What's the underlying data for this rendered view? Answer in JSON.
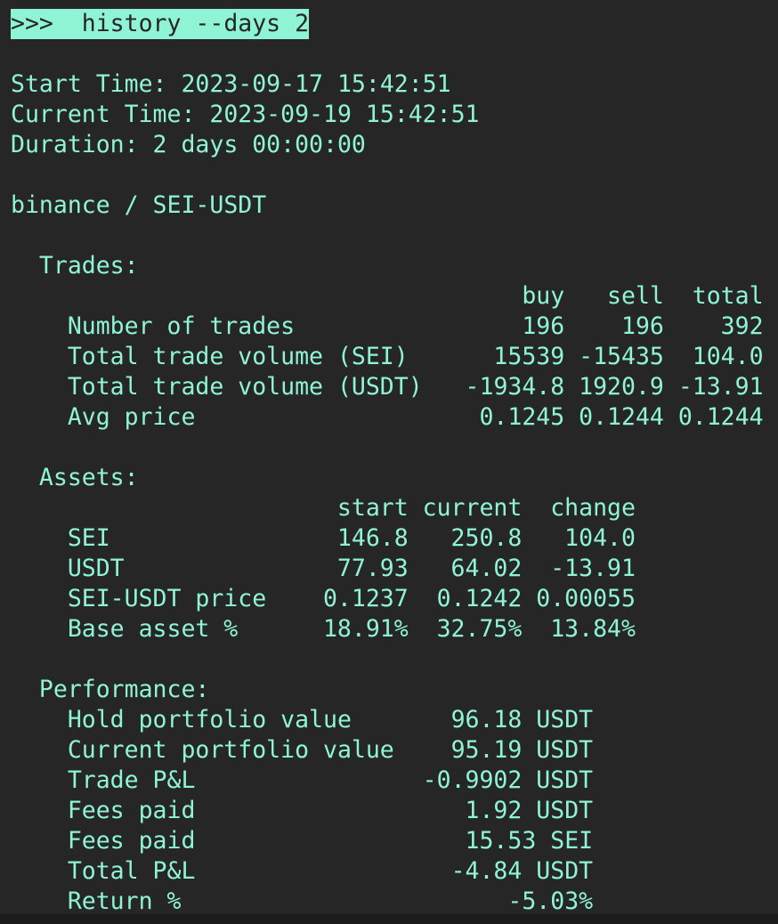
{
  "command": ">>>  history --days 2",
  "start_time": "Start Time: 2023-09-17 15:42:51",
  "current_time": "Current Time: 2023-09-19 15:42:51",
  "duration": "Duration: 2 days 00:00:00",
  "market": "binance / SEI-USDT",
  "trades": {
    "heading": "Trades:",
    "headers": [
      "buy",
      "sell",
      "total"
    ],
    "rows": [
      {
        "label": "Number of trades",
        "buy": "196",
        "sell": "196",
        "total": "392"
      },
      {
        "label": "Total trade volume (SEI)",
        "buy": "15539",
        "sell": "-15435",
        "total": "104.0"
      },
      {
        "label": "Total trade volume (USDT)",
        "buy": "-1934.8",
        "sell": "1920.9",
        "total": "-13.91"
      },
      {
        "label": "Avg price",
        "buy": "0.1245",
        "sell": "0.1244",
        "total": "0.1244"
      }
    ]
  },
  "assets": {
    "heading": "Assets:",
    "headers": [
      "start",
      "current",
      "change"
    ],
    "rows": [
      {
        "label": "SEI",
        "start": "146.8",
        "current": "250.8",
        "change": "104.0"
      },
      {
        "label": "USDT",
        "start": "77.93",
        "current": "64.02",
        "change": "-13.91"
      },
      {
        "label": "SEI-USDT price",
        "start": "0.1237",
        "current": "0.1242",
        "change": "0.00055"
      },
      {
        "label": "Base asset %",
        "start": "18.91%",
        "current": "32.75%",
        "change": "13.84%"
      }
    ]
  },
  "performance": {
    "heading": "Performance:",
    "rows": [
      {
        "label": "Hold portfolio value",
        "value": "96.18 USDT"
      },
      {
        "label": "Current portfolio value",
        "value": "95.19 USDT"
      },
      {
        "label": "Trade P&L",
        "value": "-0.9902 USDT"
      },
      {
        "label": "Fees paid",
        "value": "1.92 USDT"
      },
      {
        "label": "Fees paid",
        "value": "15.53 SEI"
      },
      {
        "label": "Total P&L",
        "value": "-4.84 USDT"
      },
      {
        "label": "Return %",
        "value": "-5.03%"
      }
    ]
  },
  "colors": {
    "background": "#262626",
    "text": "#8ff3d6"
  }
}
